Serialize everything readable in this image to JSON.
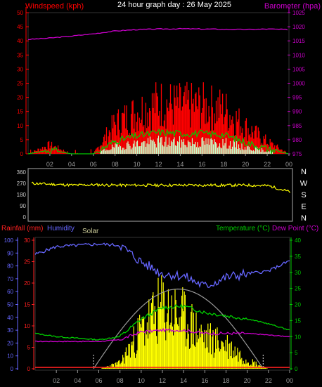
{
  "header": {
    "title": "24 hour graph day : 26 May 2025",
    "left_label": "Windspeed (kph)",
    "right_label": "Barometer (hpa)"
  },
  "colors": {
    "wind_gust": "#ff0000",
    "wind_avg": "#00cc00",
    "wind_light": "#c8ffc8",
    "barometer": "#cc00cc",
    "direction": "#ffff00",
    "rain": "#ff2020",
    "humidity": "#6666ff",
    "solar": "#ffff00",
    "solar_label": "#cccc99",
    "temperature": "#00cc00",
    "dewpoint": "#cc00cc",
    "solar_curve": "#999999",
    "axis_text": "#999999"
  },
  "x_ticks": [
    "02",
    "04",
    "06",
    "08",
    "10",
    "12",
    "14",
    "16",
    "18",
    "20",
    "22",
    "00"
  ],
  "chart_data": [
    {
      "type": "line",
      "title": "24 hour graph day : 26 May 2025",
      "ylabel": "Windspeed (kph)",
      "y2label": "Barometer (hpa)",
      "ylim": [
        0,
        50
      ],
      "y2lim": [
        975,
        1025
      ],
      "yticks": [
        "0",
        "5",
        "10",
        "15",
        "20",
        "25",
        "30",
        "35",
        "40",
        "45",
        "50"
      ],
      "y2ticks": [
        "975",
        "980",
        "985",
        "990",
        "995",
        "1000",
        "1005",
        "1010",
        "1015",
        "1020",
        "1025"
      ],
      "x_hours": [
        0,
        2,
        4,
        6,
        8,
        10,
        12,
        14,
        16,
        18,
        20,
        22,
        24
      ],
      "series": [
        {
          "name": "Windspeed (kph)",
          "values": [
            0,
            3,
            0,
            0,
            10,
            14,
            17,
            16,
            16,
            15,
            9,
            4,
            0
          ]
        },
        {
          "name": "Barometer (hpa)",
          "values": [
            1015.5,
            1016.0,
            1016.7,
            1017.5,
            1018.5,
            1019.0,
            1019.2,
            1019.3,
            1019.2,
            1019.1,
            1019.0,
            1019.2,
            1019.0
          ]
        }
      ]
    },
    {
      "type": "line",
      "ylim": [
        0,
        360
      ],
      "yticks": [
        "0",
        "90",
        "180",
        "270",
        "360"
      ],
      "compass": [
        "N",
        "W",
        "S",
        "E",
        "N"
      ],
      "x_hours": [
        0,
        2,
        4,
        6,
        8,
        10,
        12,
        14,
        16,
        18,
        20,
        22,
        24
      ],
      "series": [
        {
          "name": "Wind direction",
          "values": [
            270,
            262,
            255,
            258,
            255,
            255,
            255,
            255,
            255,
            255,
            255,
            250,
            200
          ]
        }
      ]
    },
    {
      "type": "line",
      "labels": {
        "rain": "Rainfall (mm)",
        "humidity": "Humidity",
        "solar": "Solar",
        "temperature": "Temperature (°C)",
        "dewpoint": "Dew Point (°C)"
      },
      "humidity_ticks": [
        "0",
        "10",
        "20",
        "30",
        "40",
        "50",
        "60",
        "70",
        "80",
        "90",
        "100"
      ],
      "rain_ticks": [
        "0",
        "5",
        "10",
        "15",
        "20",
        "25",
        "30"
      ],
      "temp_ticks": [
        "0",
        "5",
        "10",
        "15",
        "20",
        "25",
        "30",
        "35",
        "40"
      ],
      "humidity_lim": [
        0,
        100
      ],
      "rain_lim": [
        0,
        30
      ],
      "temp_lim": [
        0,
        40
      ],
      "x_hours": [
        0,
        2,
        4,
        6,
        8,
        10,
        12,
        14,
        16,
        18,
        20,
        22,
        24
      ],
      "series": [
        {
          "name": "Humidity",
          "values": [
            89,
            95,
            96,
            97,
            96,
            83,
            74,
            72,
            64,
            71,
            74,
            76,
            84
          ]
        },
        {
          "name": "Temperature (°C)",
          "values": [
            11,
            10,
            9.5,
            9,
            10,
            15.5,
            19,
            19.5,
            17.5,
            16.5,
            15.5,
            14,
            12
          ]
        },
        {
          "name": "Dew Point (°C)",
          "values": [
            8.5,
            8.5,
            8.5,
            8.5,
            9,
            11.5,
            12,
            12,
            11,
            11,
            11,
            10.5,
            10
          ]
        },
        {
          "name": "Solar",
          "values": [
            0,
            0,
            0,
            0,
            5,
            35,
            55,
            45,
            28,
            22,
            8,
            0,
            0
          ]
        },
        {
          "name": "Rainfall (mm)",
          "values": [
            0.5,
            0.5,
            0.5,
            0.5,
            0.5,
            0.5,
            0.5,
            0.5,
            0.5,
            0.5,
            0.5,
            0.5,
            0.5
          ]
        }
      ]
    }
  ]
}
